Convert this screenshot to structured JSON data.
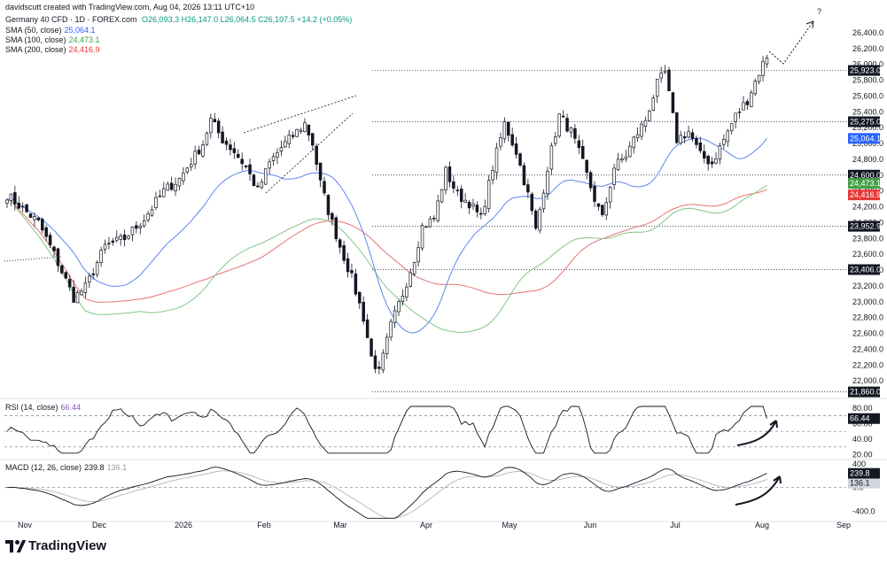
{
  "header": {
    "attribution": "davidscutt created with TradingView.com, Aug 04, 2026 13:11 UTC+10",
    "symbol": "Germany 40 CFD · 1D · FOREX.com",
    "ohlc": "O26,093.3 H26,147.0 L26,064.5 C26,107.5 +14.2 (+0.05%)",
    "ohlc_color": "#089981"
  },
  "indicators": [
    {
      "label": "SMA (50, close)",
      "value": "25,064.1",
      "color": "#2962ff"
    },
    {
      "label": "SMA (100, close)",
      "value": "24,473.1",
      "color": "#43a047"
    },
    {
      "label": "SMA (200, close)",
      "value": "24,416.9",
      "color": "#e53935"
    }
  ],
  "rsi_header": {
    "label": "RSI (14, close)",
    "value": "66.44"
  },
  "macd_header": {
    "label": "MACD (12, 26, close)",
    "value1": "239.8",
    "value2": "136.1"
  },
  "logo_text": "TradingView",
  "chart_data": [
    {
      "type": "candlestick",
      "x_tick_labels": [
        "Nov",
        "Dec",
        "2026",
        "Feb",
        "Mar",
        "Apr",
        "May",
        "Jun",
        "Jul",
        "Aug",
        "Sep"
      ],
      "y_tick_labels": [
        "26,400.0",
        "26,200.0",
        "26,000.0",
        "25,800.0",
        "25,600.0",
        "25,400.0",
        "25,200.0",
        "25,000.0",
        "24,800.0",
        "24,600.0",
        "24,400.0",
        "24,200.0",
        "24,000.0",
        "23,800.0",
        "23,600.0",
        "23,400.0",
        "23,200.0",
        "23,000.0",
        "22,800.0",
        "22,600.0",
        "22,400.0",
        "22,200.0",
        "22,000.0"
      ],
      "ylim": [
        21800,
        26500
      ],
      "current_price": "26,107.5",
      "key_levels": [
        {
          "label": "25,923.0",
          "value": 25923
        },
        {
          "label": "25,275.0",
          "value": 25275
        },
        {
          "label": "24,600.0",
          "value": 24600
        },
        {
          "label": "23,952.9",
          "value": 23952.9
        },
        {
          "label": "23,406.0",
          "value": 23406
        },
        {
          "label": "21,860.0",
          "value": 21860
        }
      ],
      "annotation": "?",
      "series": [
        {
          "name": "SMA (50, close)",
          "last": "25,064.1",
          "last_value": 25064.1
        },
        {
          "name": "SMA (100, close)",
          "last": "24,473.1",
          "last_value": 24473.1
        },
        {
          "name": "SMA (200, close)",
          "last": "24,416.9",
          "last_value": 24416.9
        }
      ]
    },
    {
      "type": "line",
      "series_name": "RSI (14, close)",
      "y_tick_labels": [
        "80.00",
        "60.00",
        "40.00",
        "20.00"
      ],
      "ylim": [
        15,
        90
      ],
      "bands": [
        70,
        50,
        30
      ],
      "last": "66.44",
      "last_value": 66.44
    },
    {
      "type": "line",
      "series_name": "MACD (12, 26, close)",
      "y_tick_labels": [
        "400",
        "0.0",
        "-400.0"
      ],
      "ylim": [
        -560,
        460
      ],
      "last_macd": "239.8",
      "last_signal": "136.1",
      "last_macd_value": 239.8,
      "last_signal_value": 136.1
    }
  ]
}
